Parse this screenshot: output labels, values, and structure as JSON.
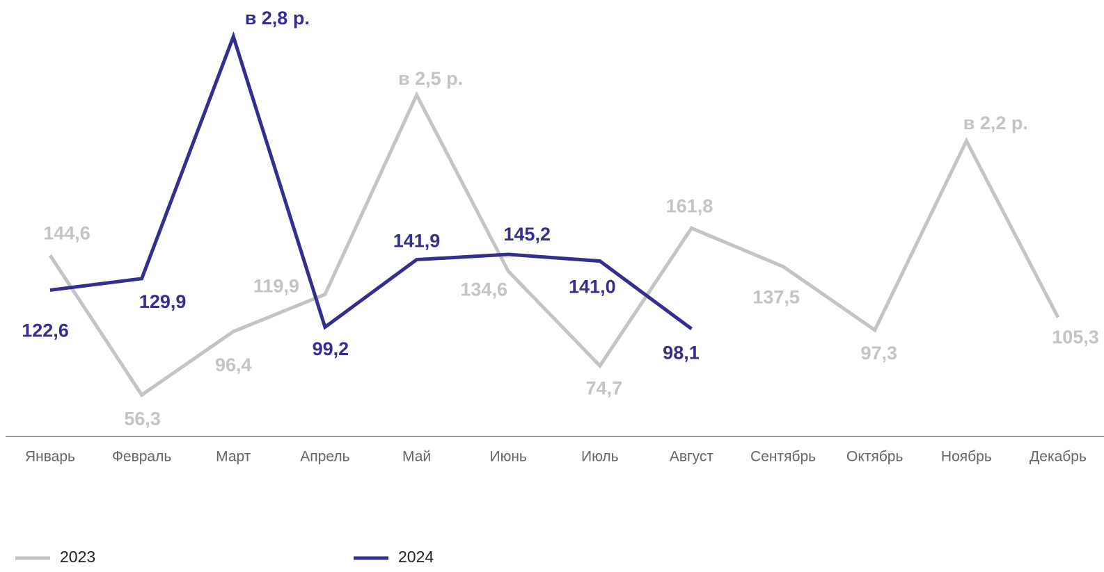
{
  "chart_data": {
    "type": "line",
    "categories": [
      "Январь",
      "Февраль",
      "Март",
      "Апрель",
      "Май",
      "Июнь",
      "Июль",
      "Август",
      "Сентябрь",
      "Октябрь",
      "Ноябрь",
      "Декабрь"
    ],
    "series": [
      {
        "name": "2023",
        "color": "#c4c4c4",
        "values": [
          144.6,
          56.3,
          96.4,
          119.9,
          246,
          134.6,
          74.7,
          161.8,
          137.5,
          97.3,
          217,
          105.3
        ],
        "value_labels": [
          "144,6",
          "56,3",
          "96,4",
          "119,9",
          null,
          "134,6",
          "74,7",
          "161,8",
          "137,5",
          "97,3",
          null,
          "105,3"
        ]
      },
      {
        "name": "2024",
        "color": "#342e8f",
        "values": [
          122.6,
          129.9,
          283,
          99.2,
          141.9,
          145.2,
          141.0,
          98.1,
          null,
          null,
          null,
          null
        ],
        "value_labels": [
          "122,6",
          "129,9",
          null,
          "99,2",
          "141,9",
          "145,2",
          "141,0",
          "98,1",
          null,
          null,
          null,
          null
        ]
      }
    ],
    "annotations": [
      {
        "text": "в 2,5 р.",
        "series": "2023",
        "category": "Май"
      },
      {
        "text": "в 2,2 р.",
        "series": "2023",
        "category": "Ноябрь"
      },
      {
        "text": "в 2,8 р.",
        "series": "2024",
        "category": "Март"
      }
    ],
    "ylim": [
      30,
      300
    ],
    "legend": "bottom-left"
  }
}
